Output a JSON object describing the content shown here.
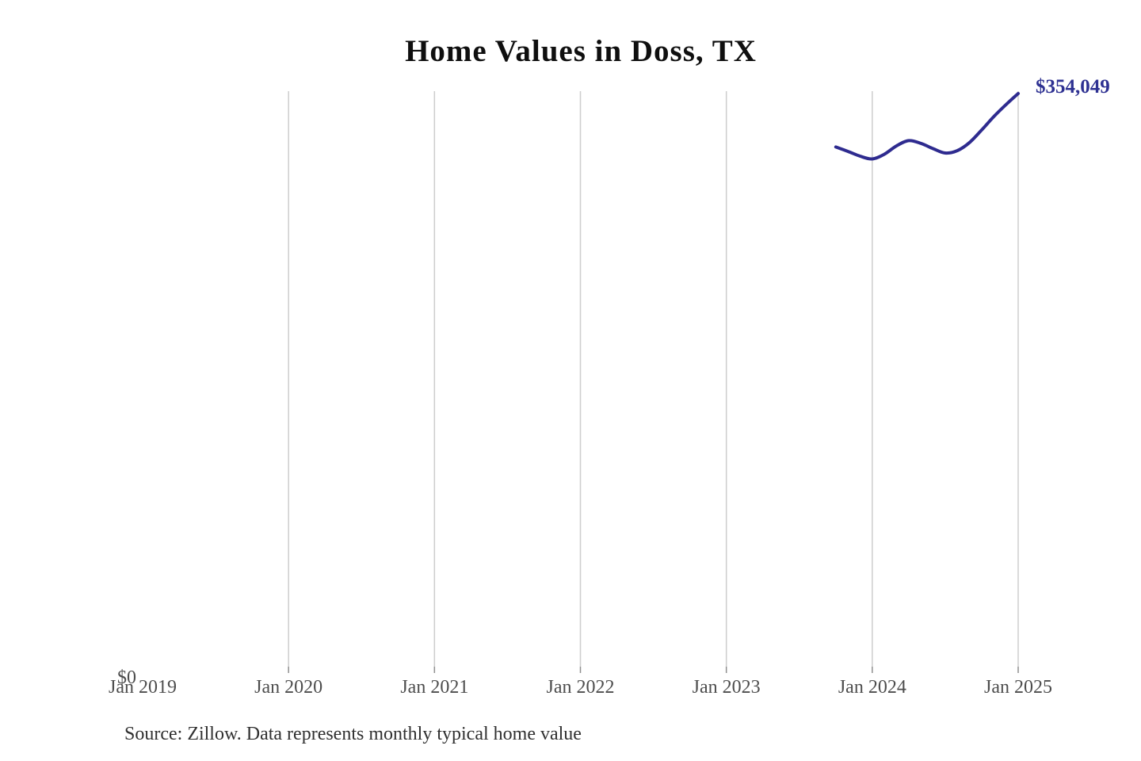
{
  "title": "Home Values in Doss, TX",
  "source_note": "Source: Zillow. Data represents monthly typical home value",
  "y_axis": {
    "zero_label": "$0"
  },
  "colors": {
    "line": "#2e2b8f",
    "end_label": "#2e3192",
    "gridline": "#cdcdcd",
    "tick": "#8f8f8f",
    "axis_label": "#4d4d4d",
    "title": "#0f0f0f",
    "source": "#303030"
  },
  "chart_data": {
    "type": "line",
    "title": "Home Values in Doss, TX",
    "unit": "USD",
    "ylim": [
      0,
      354049
    ],
    "grid": "vertical-only",
    "legend": "none",
    "x_ticks": [
      {
        "label": "Jan 2019",
        "gridline": false
      },
      {
        "label": "Jan 2020",
        "gridline": true
      },
      {
        "label": "Jan 2021",
        "gridline": true
      },
      {
        "label": "Jan 2022",
        "gridline": true
      },
      {
        "label": "Jan 2023",
        "gridline": true
      },
      {
        "label": "Jan 2024",
        "gridline": true
      },
      {
        "label": "Jan 2025",
        "gridline": true
      }
    ],
    "series": [
      {
        "name": "monthly-typical-home-value",
        "end_label": "$354,049",
        "x": [
          "Oct 2023",
          "Nov 2023",
          "Dec 2023",
          "Jan 2024",
          "Feb 2024",
          "Mar 2024",
          "Apr 2024",
          "May 2024",
          "Jun 2024",
          "Jul 2024",
          "Aug 2024",
          "Sep 2024",
          "Oct 2024",
          "Nov 2024",
          "Dec 2024",
          "Jan 2025"
        ],
        "values": [
          321400,
          318700,
          315800,
          314100,
          317000,
          322100,
          325300,
          323600,
          320400,
          317700,
          319200,
          324100,
          331800,
          340000,
          347300,
          354049
        ]
      }
    ]
  }
}
